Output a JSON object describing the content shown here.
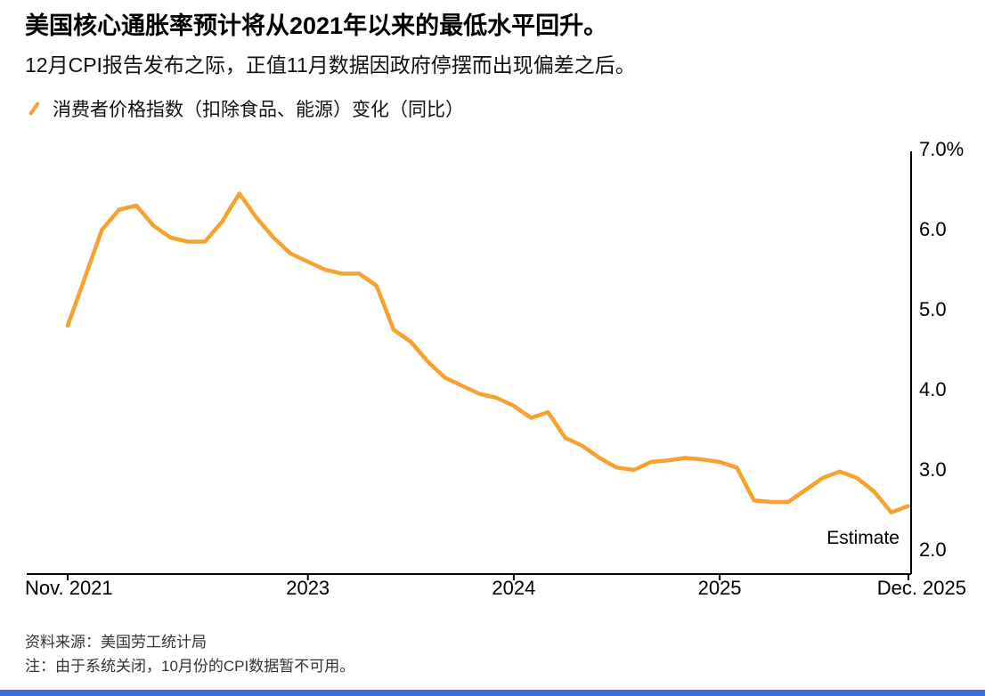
{
  "chart_data": {
    "type": "line",
    "title": "美国核心通胀率预计将从2021年以来的最低水平回升。",
    "subtitle": "12月CPI报告发布之际，正值11月数据因政府停摆而出现偏差之后。",
    "legend_label": "消费者价格指数（扣除食品、能源）变化（同比）",
    "series_name": "消费者价格指数（扣除食品、能源）同比变化",
    "x": [
      "2021-11",
      "2021-12",
      "2022-01",
      "2022-02",
      "2022-03",
      "2022-04",
      "2022-05",
      "2022-06",
      "2022-07",
      "2022-08",
      "2022-09",
      "2022-10",
      "2022-11",
      "2022-12",
      "2023-01",
      "2023-02",
      "2023-03",
      "2023-04",
      "2023-05",
      "2023-06",
      "2023-07",
      "2023-08",
      "2023-09",
      "2023-10",
      "2023-11",
      "2023-12",
      "2024-01",
      "2024-02",
      "2024-03",
      "2024-04",
      "2024-05",
      "2024-06",
      "2024-07",
      "2024-08",
      "2024-09",
      "2024-10",
      "2024-11",
      "2024-12",
      "2025-01",
      "2025-02",
      "2025-03",
      "2025-04",
      "2025-05",
      "2025-06",
      "2025-07",
      "2025-08",
      "2025-09",
      "2025-10",
      "2025-11",
      "2025-12"
    ],
    "values": [
      4.8,
      5.4,
      6.0,
      6.25,
      6.3,
      6.05,
      5.9,
      5.85,
      5.85,
      6.1,
      6.45,
      6.15,
      5.9,
      5.7,
      5.6,
      5.5,
      5.45,
      5.45,
      5.3,
      4.75,
      4.6,
      4.35,
      4.15,
      4.05,
      3.95,
      3.9,
      3.8,
      3.65,
      3.72,
      3.4,
      3.3,
      3.15,
      3.03,
      3.0,
      3.1,
      3.12,
      3.15,
      3.13,
      3.1,
      3.03,
      2.62,
      2.6,
      2.6,
      2.75,
      2.9,
      2.98,
      2.9,
      2.73,
      2.47,
      2.55
    ],
    "ylim": [
      2.0,
      7.0
    ],
    "y_ticks": [
      {
        "value": 7.0,
        "label": "7.0%"
      },
      {
        "value": 6.0,
        "label": "6.0"
      },
      {
        "value": 5.0,
        "label": "5.0"
      },
      {
        "value": 4.0,
        "label": "4.0"
      },
      {
        "value": 3.0,
        "label": "3.0"
      },
      {
        "value": 2.0,
        "label": "2.0"
      }
    ],
    "x_ticks": [
      {
        "index": 0,
        "label": "Nov. 2021",
        "align": "left"
      },
      {
        "index": 14,
        "label": "2023",
        "align": "center"
      },
      {
        "index": 26,
        "label": "2024",
        "align": "center"
      },
      {
        "index": 38,
        "label": "2025",
        "align": "center"
      },
      {
        "index": 49,
        "label": "Dec. 2025",
        "align": "right"
      }
    ],
    "annotation": "Estimate",
    "estimate_divider": true,
    "grid": false,
    "legend_position": "top-left"
  },
  "footer": {
    "source": "资料来源：美国劳工统计局",
    "note": "注：由于系统关闭，10月份的CPI数据暂不可用。"
  },
  "colors": {
    "line": "#F7A22F",
    "axis": "#000000",
    "accent_bar": "#3E6BD5"
  }
}
